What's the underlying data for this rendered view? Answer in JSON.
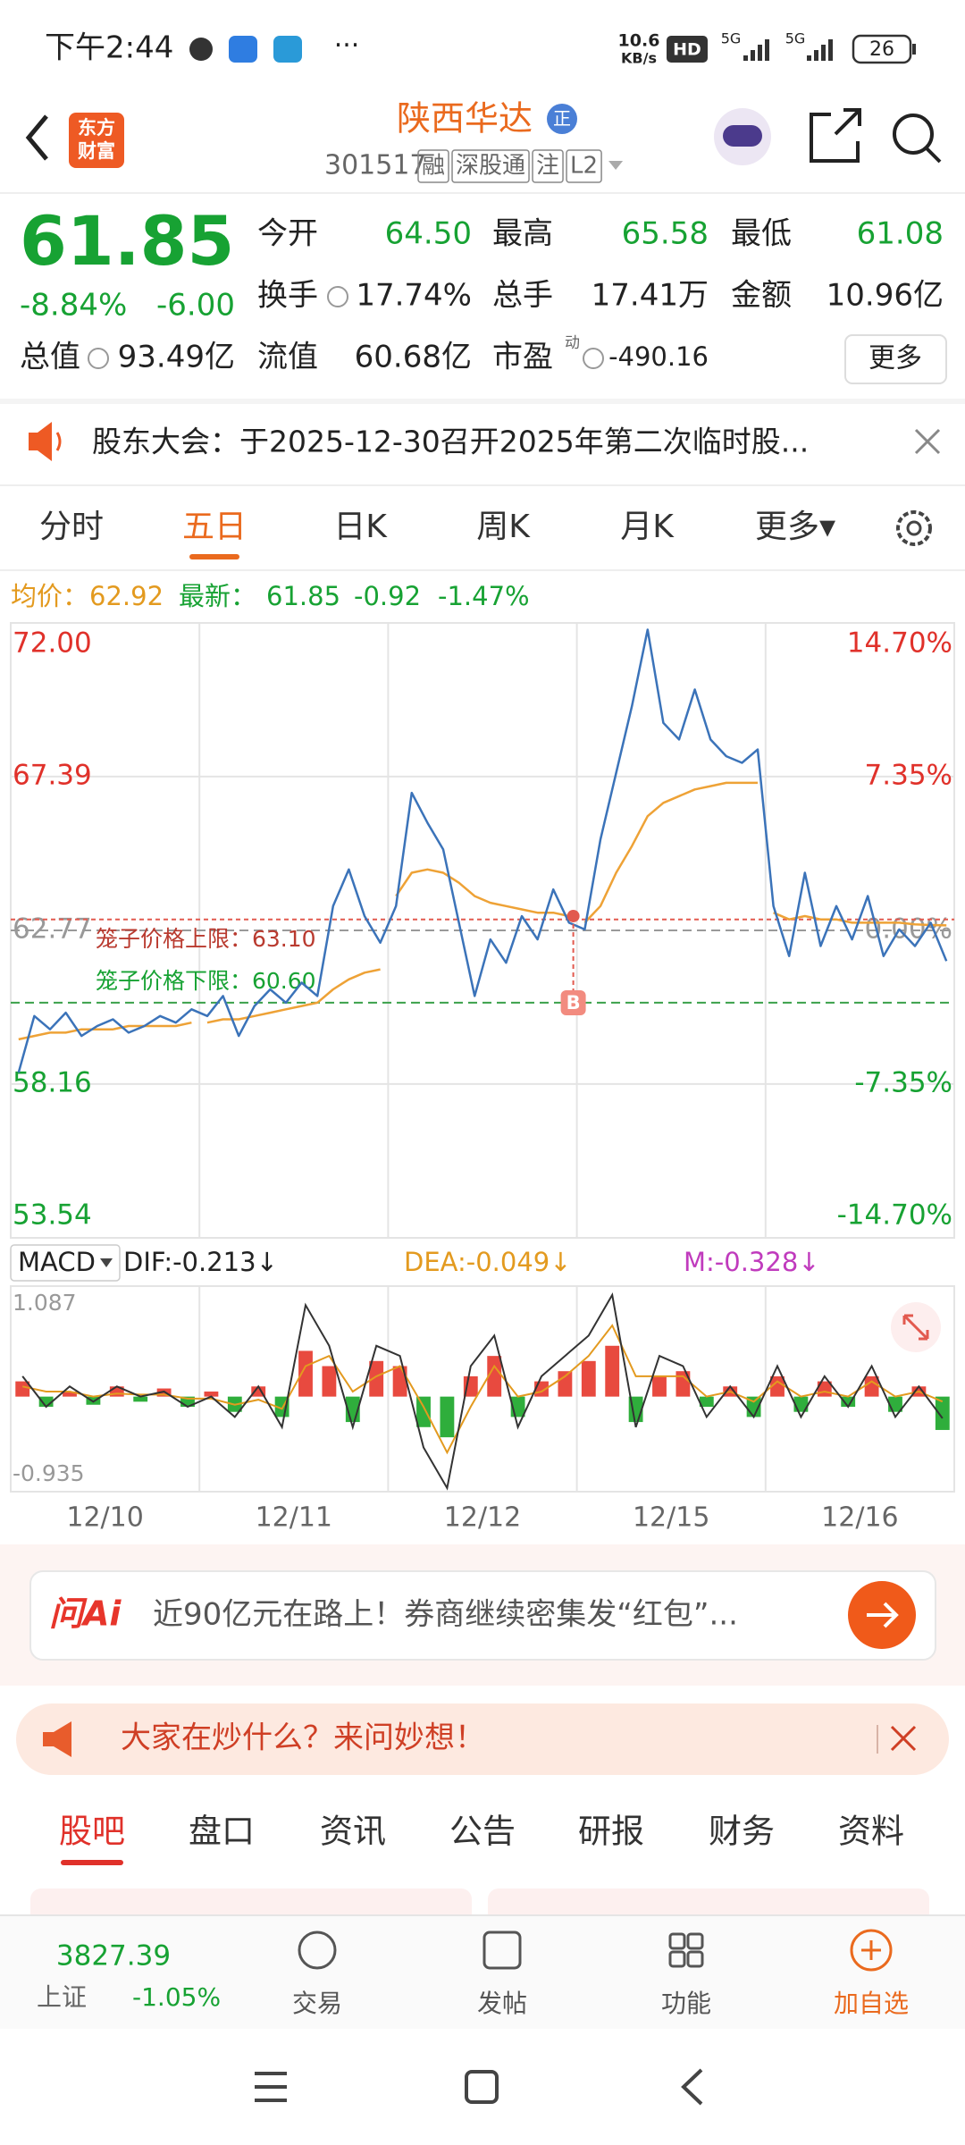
{
  "status": {
    "time": "下午2:44",
    "more": "···",
    "speed": "10.6",
    "speed_unit": "KB/s",
    "hd": "HD",
    "net1": "5G",
    "net2": "5G",
    "battery": "26"
  },
  "header": {
    "logo_top": "东方",
    "logo_bottom": "财富",
    "title": "陕西华达",
    "badge": "正",
    "code": "301517",
    "tags": [
      "融",
      "深股通",
      "注",
      "L2"
    ]
  },
  "quote": {
    "price": "61.85",
    "change_pct": "-8.84%",
    "change": "-6.00",
    "fields": [
      {
        "label": "今开",
        "value": "64.50"
      },
      {
        "label": "最高",
        "value": "65.58"
      },
      {
        "label": "最低",
        "value": "61.08"
      },
      {
        "label": "换手",
        "value": "17.74%"
      },
      {
        "label": "总手",
        "value": "17.41万"
      },
      {
        "label": "金额",
        "value": "10.96亿"
      }
    ],
    "total_label": "总值",
    "total": "93.49亿",
    "float_label": "流值",
    "float": "60.68亿",
    "pe_label": "市盈",
    "pe_sup": "动",
    "pe": "-490.16",
    "more": "更多"
  },
  "notice": {
    "text": "股东大会：于2025-12-30召开2025年第二次临时股..."
  },
  "tabs": [
    "分时",
    "五日",
    "日K",
    "周K",
    "月K",
    "更多▾"
  ],
  "info": {
    "avg_label": "均价：",
    "avg": "62.92",
    "last_label": "最新：",
    "last": "61.85",
    "change": "-0.92",
    "change_pct": "-1.47%"
  },
  "chart": {
    "type": "line",
    "ylim": [
      53.54,
      72.0
    ],
    "yticks": [
      {
        "value": 72.0,
        "label": "72.00"
      },
      {
        "value": 67.39,
        "label": "67.39"
      },
      {
        "value": 62.77,
        "label": "62.77"
      },
      {
        "value": 58.16,
        "label": "58.16"
      },
      {
        "value": 53.54,
        "label": "53.54"
      }
    ],
    "pct_ticks": [
      "14.70%",
      "7.35%",
      "0.00%",
      "-7.35%",
      "-14.70%"
    ],
    "upper": {
      "label": "笼子价格上限：63.10",
      "value": 63.1
    },
    "lower": {
      "label": "笼子价格下限：60.60",
      "value": 60.6
    },
    "buy_marker": {
      "label": "B",
      "value": 63.2
    },
    "price": {
      "name": "price",
      "color": "#3b73b9",
      "values": [
        58.5,
        60.2,
        59.8,
        60.3,
        59.6,
        59.9,
        60.1,
        59.7,
        59.9,
        60.2,
        60.0,
        60.4,
        60.2,
        60.8,
        59.6,
        60.5,
        61.0,
        60.6,
        61.2,
        60.8,
        63.5,
        64.6,
        63.2,
        62.4,
        63.5,
        66.9,
        66.0,
        65.2,
        63.0,
        60.8,
        62.5,
        61.8,
        63.2,
        62.5,
        64.0,
        63.0,
        62.8,
        65.5,
        67.5,
        69.5,
        71.8,
        69.0,
        68.5,
        70.0,
        68.5,
        68.0,
        67.8,
        68.2,
        63.5,
        62.0,
        64.5,
        62.3,
        63.5,
        62.5,
        63.8,
        62.0,
        62.8,
        62.3,
        63.0,
        61.85
      ]
    },
    "avg": {
      "name": "avg",
      "color": "#eea236",
      "values": [
        59.5,
        59.6,
        59.7,
        59.7,
        59.8,
        59.8,
        59.8,
        59.9,
        59.9,
        59.9,
        59.9,
        60.0,
        60.0,
        60.1,
        60.1,
        60.2,
        60.3,
        60.4,
        60.5,
        60.6,
        61.0,
        61.3,
        61.5,
        61.6,
        63.8,
        64.5,
        64.6,
        64.5,
        64.2,
        63.8,
        63.6,
        63.5,
        63.4,
        63.3,
        63.3,
        63.2,
        63.0,
        63.5,
        64.5,
        65.3,
        66.2,
        66.6,
        66.8,
        67.0,
        67.1,
        67.2,
        67.2,
        67.2,
        63.3,
        63.1,
        63.2,
        63.1,
        63.1,
        63.0,
        63.0,
        63.0,
        63.0,
        62.95,
        62.93,
        62.92
      ]
    },
    "dates": [
      "12/10",
      "12/11",
      "12/12",
      "12/15",
      "12/16"
    ]
  },
  "macd": {
    "name": "MACD",
    "dif_label": "DIF:-0.213↓",
    "dea_label": "DEA:-0.049↓",
    "m_label": "M:-0.328↓",
    "ylim": [
      -0.935,
      1.087
    ],
    "top_label": "1.087",
    "bottom_label": "-0.935",
    "hist": [
      0.15,
      -0.1,
      0.05,
      -0.08,
      0.1,
      -0.05,
      0.08,
      -0.1,
      0.05,
      -0.15,
      0.1,
      -0.2,
      0.45,
      0.3,
      -0.25,
      0.35,
      0.3,
      -0.3,
      -0.4,
      0.2,
      0.4,
      -0.2,
      0.15,
      0.25,
      0.35,
      0.5,
      -0.25,
      0.2,
      0.25,
      -0.1,
      0.1,
      -0.2,
      0.2,
      -0.15,
      0.15,
      -0.1,
      0.2,
      -0.15,
      0.1,
      -0.328
    ],
    "dif": [
      0.2,
      -0.1,
      0.1,
      -0.05,
      0.1,
      0,
      0.05,
      -0.1,
      0,
      -0.2,
      0.1,
      -0.3,
      0.9,
      0.5,
      -0.3,
      0.5,
      0.4,
      -0.5,
      -0.9,
      0.3,
      0.6,
      -0.3,
      0.2,
      0.4,
      0.6,
      1.0,
      -0.3,
      0.4,
      0.3,
      -0.2,
      0.1,
      -0.2,
      0.3,
      -0.2,
      0.2,
      -0.1,
      0.3,
      -0.2,
      0.1,
      -0.213
    ],
    "dea": [
      0.1,
      0.05,
      0.05,
      0,
      0.03,
      0.02,
      0.02,
      -0.02,
      -0.02,
      -0.08,
      -0.03,
      -0.12,
      0.3,
      0.4,
      0.05,
      0.2,
      0.3,
      -0.1,
      -0.55,
      -0.1,
      0.3,
      0,
      0.05,
      0.2,
      0.4,
      0.7,
      0.2,
      0.2,
      0.2,
      0,
      0.05,
      -0.05,
      0.15,
      0,
      0.05,
      0,
      0.15,
      0,
      0.05,
      -0.049
    ]
  },
  "ai": {
    "logo": "问Ai",
    "text": "近90亿元在路上！券商继续密集发“红包”..."
  },
  "banner": {
    "text": "大家在炒什么？来问妙想！"
  },
  "bottom_tabs": [
    "股吧",
    "盘口",
    "资讯",
    "公告",
    "研报",
    "财务",
    "资料"
  ],
  "nav": {
    "index_value": "3827.39",
    "index_name": "上证",
    "index_change": "-1.05%",
    "items": [
      "交易",
      "发帖",
      "功能",
      "加自选"
    ]
  }
}
